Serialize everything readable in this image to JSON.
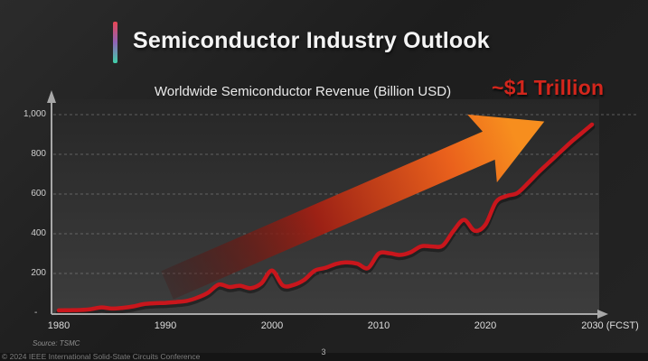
{
  "slide": {
    "title": "Semiconductor Industry Outlook",
    "source": "Source: TSMC",
    "copyright": "© 2024 IEEE International Solid-State Circuits Conference",
    "page_number": "3"
  },
  "chart_data": {
    "type": "line",
    "title": "Worldwide Semiconductor Revenue (Billion USD)",
    "annotation": "~$1 Trillion",
    "series_name": "Worldwide semiconductor revenue (Billion USD)",
    "x": [
      1980,
      1981,
      1982,
      1983,
      1984,
      1985,
      1986,
      1987,
      1988,
      1989,
      1990,
      1991,
      1992,
      1993,
      1994,
      1995,
      1996,
      1997,
      1998,
      1999,
      2000,
      2001,
      2002,
      2003,
      2004,
      2005,
      2006,
      2007,
      2008,
      2009,
      2010,
      2011,
      2012,
      2013,
      2014,
      2015,
      2016,
      2017,
      2018,
      2019,
      2020,
      2021,
      2022,
      2023,
      2024,
      2025,
      2026,
      2027,
      2028,
      2029,
      2030
    ],
    "values": [
      14,
      15,
      16,
      20,
      29,
      23,
      27,
      34,
      46,
      50,
      52,
      56,
      62,
      78,
      103,
      144,
      132,
      138,
      126,
      150,
      215,
      140,
      142,
      167,
      214,
      228,
      248,
      256,
      249,
      227,
      300,
      302,
      293,
      307,
      337,
      336,
      340,
      413,
      470,
      415,
      445,
      560,
      590,
      605,
      655,
      710,
      760,
      810,
      860,
      905,
      950
    ],
    "ylim": [
      0,
      1000
    ],
    "yticks": [
      200,
      400,
      600,
      800,
      1000
    ],
    "ytick_labels": [
      "200",
      "400",
      "600",
      "800",
      "1,000"
    ],
    "zero_label": "-",
    "xticks": [
      1980,
      1990,
      2000,
      2010,
      2020,
      2030
    ],
    "xtick_labels": [
      "1980",
      "1990",
      "2000",
      "2010",
      "2020",
      "2030 (FCST)"
    ],
    "grid": "dashed horizontal gridlines at y ticks",
    "legend": "none",
    "trend_arrow": "large gradient arrow from lower-left (~1992, ~150B) to upper-right (~2028, ~950B) pointing at ~$1 Trillion",
    "colors": {
      "line": "#c9161c",
      "annotation": "#d3261c",
      "axis": "#a8a8a8",
      "grid": "#8d8d8d",
      "arrow_gradient": [
        "rgba(70,14,12,0.25)",
        "#9c2115",
        "#ea611c",
        "#f78e1e"
      ],
      "accent_bar": [
        "#ea4653",
        "#8f63b8",
        "#3fd0a8"
      ]
    }
  }
}
